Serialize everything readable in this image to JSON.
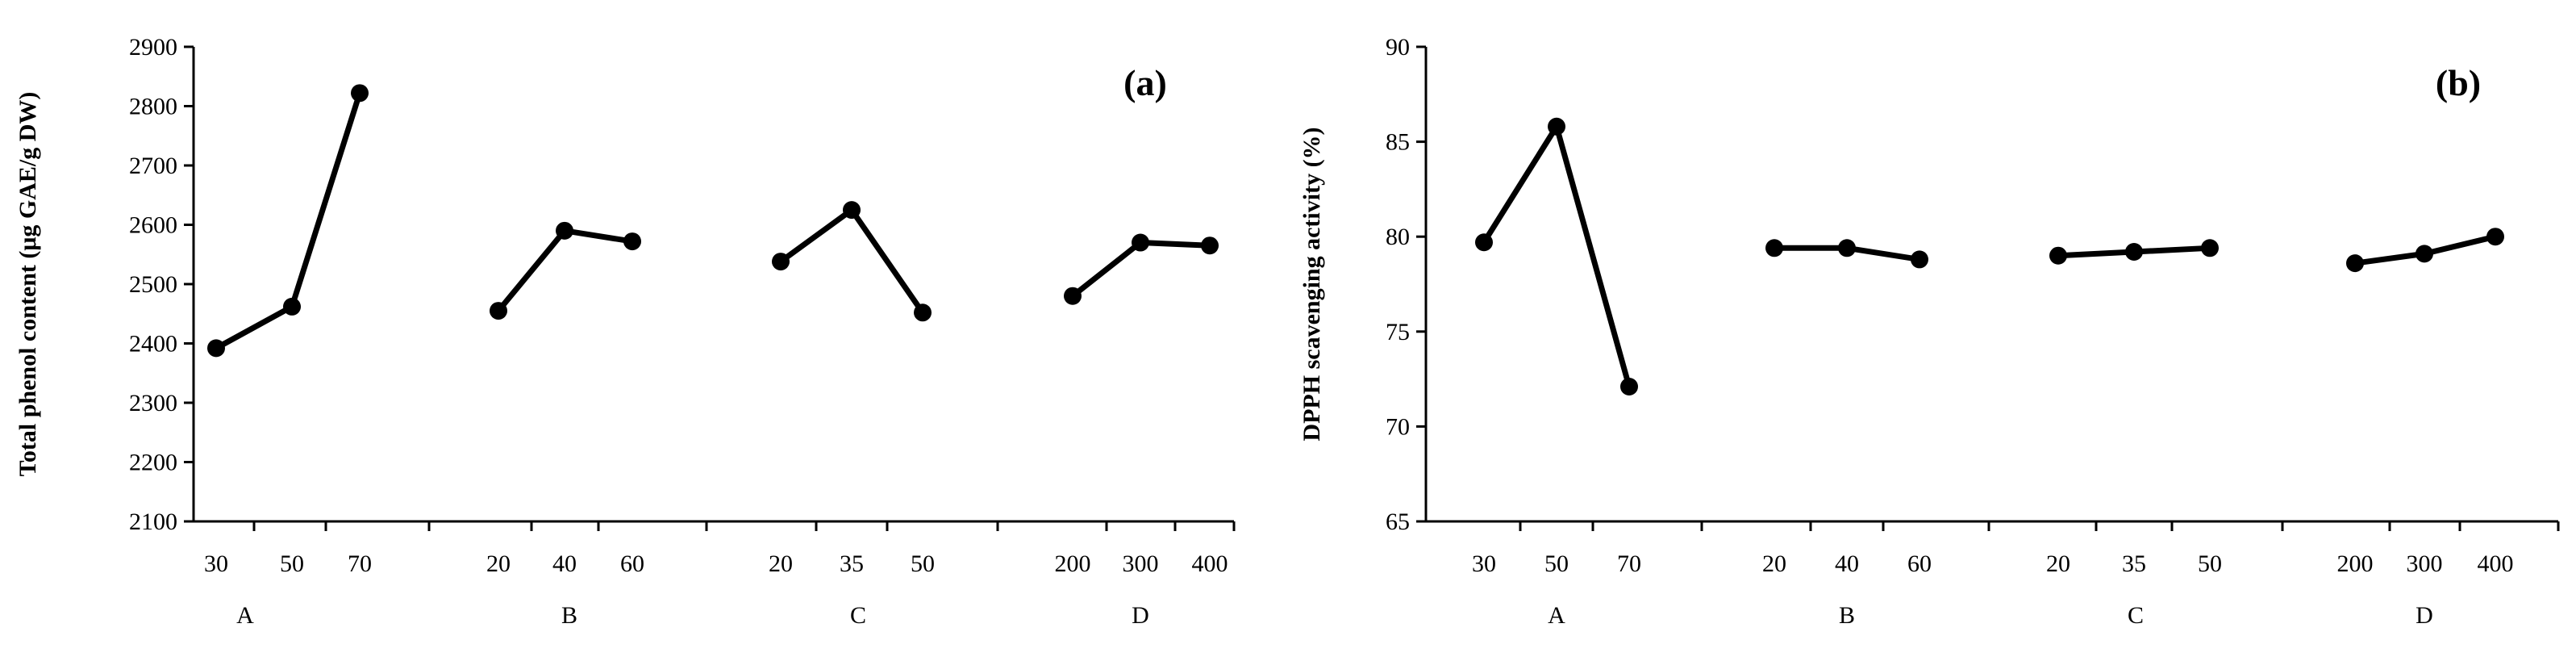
{
  "chart_data": [
    {
      "type": "line",
      "panel_label": "(a)",
      "ylabel": "Total phenol content (μg GAE/g DW)",
      "ylim": [
        2100,
        2900
      ],
      "yticks": [
        2100,
        2200,
        2300,
        2400,
        2500,
        2600,
        2700,
        2800,
        2900
      ],
      "grid": false,
      "legend": "none",
      "groups": [
        {
          "name": "A",
          "x": [
            "30",
            "50",
            "70"
          ],
          "values": [
            2392,
            2462,
            2822
          ]
        },
        {
          "name": "B",
          "x": [
            "20",
            "40",
            "60"
          ],
          "values": [
            2455,
            2590,
            2572
          ]
        },
        {
          "name": "C",
          "x": [
            "20",
            "35",
            "50"
          ],
          "values": [
            2538,
            2625,
            2452
          ]
        },
        {
          "name": "D",
          "x": [
            "200",
            "300",
            "400"
          ],
          "values": [
            2480,
            2570,
            2565
          ]
        }
      ]
    },
    {
      "type": "line",
      "panel_label": "(b)",
      "ylabel": "DPPH scavenging activity (%)",
      "ylim": [
        65,
        90
      ],
      "yticks": [
        65,
        70,
        75,
        80,
        85,
        90
      ],
      "grid": false,
      "legend": "none",
      "groups": [
        {
          "name": "A",
          "x": [
            "30",
            "50",
            "70"
          ],
          "values": [
            79.7,
            85.8,
            72.1
          ]
        },
        {
          "name": "B",
          "x": [
            "20",
            "40",
            "60"
          ],
          "values": [
            79.4,
            79.4,
            78.8
          ]
        },
        {
          "name": "C",
          "x": [
            "20",
            "35",
            "50"
          ],
          "values": [
            79.0,
            79.2,
            79.4
          ]
        },
        {
          "name": "D",
          "x": [
            "200",
            "300",
            "400"
          ],
          "values": [
            78.6,
            79.1,
            80.0
          ]
        }
      ]
    }
  ]
}
